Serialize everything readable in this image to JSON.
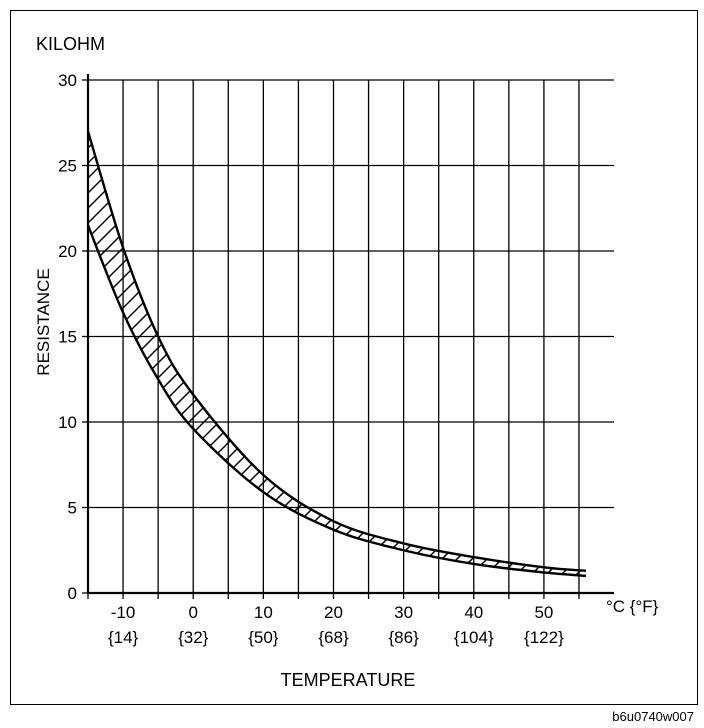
{
  "chart_data": {
    "type": "area",
    "unit_label": "KILOHM",
    "ylabel": "RESISTANCE",
    "xlabel": "TEMPERATURE",
    "x_unit_label": "°C {°F}",
    "xlim": [
      -15,
      56
    ],
    "ylim": [
      0,
      30
    ],
    "x_ticks": [
      {
        "c": -10,
        "f": "{14}"
      },
      {
        "c": 0,
        "f": "{32}"
      },
      {
        "c": 10,
        "f": "{50}"
      },
      {
        "c": 20,
        "f": "{68}"
      },
      {
        "c": 30,
        "f": "{86}"
      },
      {
        "c": 40,
        "f": "{104}"
      },
      {
        "c": 50,
        "f": "{122}"
      }
    ],
    "y_ticks": [
      0,
      5,
      10,
      15,
      20,
      25,
      30
    ],
    "grid": true,
    "hatched_band": true,
    "series": [
      {
        "name": "upper",
        "x": [
          -15,
          -10,
          -5,
          0,
          10,
          20,
          30,
          40,
          50,
          56
        ],
        "y": [
          27.0,
          20.2,
          15.0,
          11.6,
          6.9,
          4.2,
          2.9,
          2.1,
          1.5,
          1.3
        ]
      },
      {
        "name": "lower",
        "x": [
          -15,
          -10,
          -5,
          0,
          10,
          20,
          30,
          40,
          50,
          56
        ],
        "y": [
          21.5,
          16.4,
          12.5,
          9.6,
          5.9,
          3.7,
          2.5,
          1.7,
          1.2,
          1.0
        ]
      }
    ]
  },
  "image_code": "b6u0740w007"
}
